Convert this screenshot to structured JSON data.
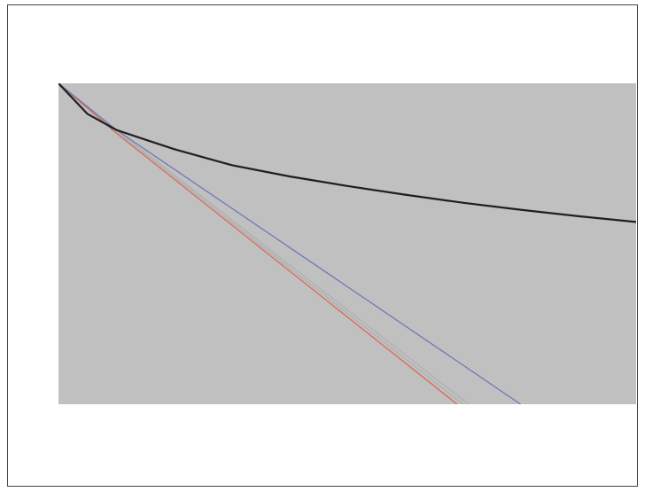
{
  "chart_data": {
    "type": "line",
    "title": "",
    "xlabel": "",
    "ylabel": "",
    "x_ticks": [],
    "y_ticks": [],
    "xlim": [
      0,
      5
    ],
    "ylim": [
      0,
      1
    ],
    "grid": false,
    "plot_background": "#c0c0c0",
    "legend_position": "bottom",
    "series": [
      {
        "name": "",
        "color": "#1f1f1f",
        "x": [
          0,
          0.25,
          0.5,
          0.75,
          1,
          1.5,
          2,
          2.5,
          3,
          3.5,
          4,
          4.5,
          5
        ],
        "y": [
          1.0,
          0.905,
          0.855,
          0.825,
          0.795,
          0.745,
          0.71,
          0.68,
          0.653,
          0.628,
          0.606,
          0.586,
          0.568
        ]
      },
      {
        "name": "",
        "color": "#6f78b8",
        "x": [
          0,
          0.5,
          4
        ],
        "y": [
          1.0,
          0.855,
          0.0
        ]
      },
      {
        "name": "",
        "color": "#d96a5a",
        "x": [
          0,
          0.5,
          3.45
        ],
        "y": [
          1.0,
          0.845,
          0.0
        ]
      },
      {
        "name": "",
        "color": "#b0b0b0",
        "x": [
          0,
          0.5,
          3.5
        ],
        "y": [
          1.0,
          0.85,
          0.0
        ]
      },
      {
        "name": "",
        "color": "#b0b0b0",
        "x": [
          0,
          0.5,
          3.55
        ],
        "y": [
          1.0,
          0.855,
          0.0
        ]
      }
    ]
  }
}
